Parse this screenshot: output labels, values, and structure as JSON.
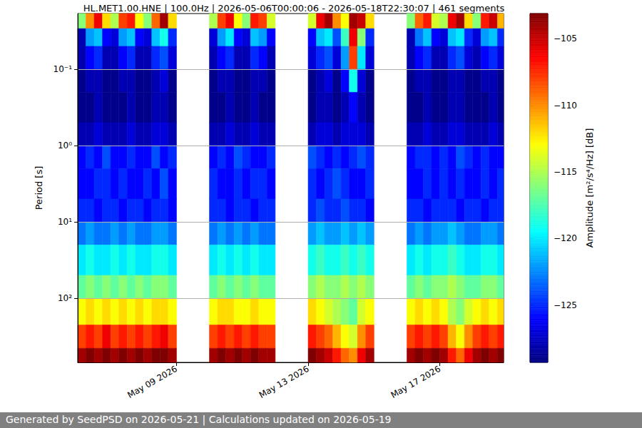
{
  "chart_data": {
    "type": "heatmap",
    "title": "HL.MET1.00.HNE | 100.0Hz | 2026-05-06T00:00:06 - 2026-05-18T22:30:07 | 461 segments",
    "footer": "Generated by SeedPSD on 2026-05-21 | Calculations updated on 2026-05-19",
    "ylabel": "Period [s]",
    "log": "y",
    "grid": true,
    "xlim": [
      "2026-05-06T00:00:06",
      "2026-05-18T22:30:07"
    ],
    "xticks": [
      {
        "value": "2026-05-09T00:00:00",
        "label": "May 09 2026"
      },
      {
        "value": "2026-05-13T00:00:00",
        "label": "May 13 2026"
      },
      {
        "value": "2026-05-17T00:00:00",
        "label": "May 17 2026"
      }
    ],
    "ylim": [
      0.0186,
      690
    ],
    "yticks": [
      {
        "value": 0.1,
        "label": "10⁻¹"
      },
      {
        "value": 1,
        "label": "10⁰"
      },
      {
        "value": 10,
        "label": "10¹"
      },
      {
        "value": 100,
        "label": "10²"
      }
    ],
    "x": [
      "2026-05-06T00:00:00",
      "2026-05-06T06:00:00",
      "2026-05-06T12:00:00",
      "2026-05-06T18:00:00",
      "2026-05-07T00:00:00",
      "2026-05-07T06:00:00",
      "2026-05-07T12:00:00",
      "2026-05-07T18:00:00",
      "2026-05-08T00:00:00",
      "2026-05-08T06:00:00",
      "2026-05-08T12:00:00",
      "2026-05-08T18:00:00",
      "2026-05-10T00:00:00",
      "2026-05-10T06:00:00",
      "2026-05-10T12:00:00",
      "2026-05-10T18:00:00",
      "2026-05-11T00:00:00",
      "2026-05-11T06:00:00",
      "2026-05-11T12:00:00",
      "2026-05-11T18:00:00",
      "2026-05-13T00:00:00",
      "2026-05-13T06:00:00",
      "2026-05-13T12:00:00",
      "2026-05-13T18:00:00",
      "2026-05-14T00:00:00",
      "2026-05-14T06:00:00",
      "2026-05-14T12:00:00",
      "2026-05-14T18:00:00",
      "2026-05-16T00:00:00",
      "2026-05-16T06:00:00",
      "2026-05-16T12:00:00",
      "2026-05-16T18:00:00",
      "2026-05-17T00:00:00",
      "2026-05-17T06:00:00",
      "2026-05-17T12:00:00",
      "2026-05-17T18:00:00",
      "2026-05-18T00:00:00",
      "2026-05-18T06:00:00",
      "2026-05-18T12:00:00",
      "2026-05-18T18:00:00"
    ],
    "period_bins": [
      0.0186,
      0.0293,
      0.05,
      0.1,
      0.2,
      0.5,
      1,
      2,
      5,
      10,
      20,
      50,
      100,
      223,
      451,
      690
    ],
    "amplitude": [
      [
        -116,
        -110,
        -106,
        -112,
        -115,
        -108,
        -107,
        -113,
        -116,
        -109,
        -104,
        -112,
        -115,
        -108,
        -106,
        -113,
        -116,
        -107,
        -108,
        -114,
        -114,
        -106,
        -104,
        -110,
        -113,
        -104,
        -105,
        -112,
        -116,
        -109,
        -107,
        -114,
        -115,
        -106,
        -104,
        -112,
        -116,
        -107,
        -105,
        -111
      ],
      [
        -128,
        -122,
        -121,
        -126,
        -127,
        -122,
        -121,
        -126,
        -127,
        -121,
        -119,
        -125,
        -127,
        -122,
        -120,
        -126,
        -127,
        -121,
        -122,
        -126,
        -126,
        -121,
        -120,
        -124,
        -118,
        -106,
        -116,
        -125,
        -128,
        -123,
        -121,
        -126,
        -127,
        -121,
        -120,
        -125,
        -127,
        -122,
        -121,
        -125
      ],
      [
        -128,
        -126,
        -125,
        -128,
        -128,
        -126,
        -125,
        -128,
        -128,
        -125,
        -124,
        -127,
        -128,
        -126,
        -125,
        -128,
        -128,
        -125,
        -126,
        -128,
        -127,
        -125,
        -124,
        -127,
        -122,
        -108,
        -120,
        -127,
        -128,
        -126,
        -125,
        -128,
        -128,
        -125,
        -124,
        -127,
        -128,
        -126,
        -125,
        -127
      ],
      [
        -129,
        -128,
        -128,
        -129,
        -129,
        -128,
        -128,
        -129,
        -129,
        -128,
        -127,
        -129,
        -129,
        -128,
        -128,
        -129,
        -129,
        -128,
        -128,
        -129,
        -129,
        -128,
        -127,
        -129,
        -126,
        -119,
        -127,
        -129,
        -129,
        -128,
        -128,
        -129,
        -129,
        -128,
        -128,
        -129,
        -129,
        -128,
        -128,
        -129
      ],
      [
        -129,
        -129,
        -128,
        -129,
        -129,
        -129,
        -128,
        -129,
        -129,
        -128,
        -128,
        -129,
        -129,
        -129,
        -128,
        -129,
        -129,
        -128,
        -129,
        -129,
        -129,
        -128,
        -128,
        -129,
        -128,
        -126,
        -128,
        -129,
        -129,
        -129,
        -128,
        -129,
        -129,
        -128,
        -128,
        -129,
        -129,
        -129,
        -128,
        -129
      ],
      [
        -128,
        -128,
        -127,
        -128,
        -128,
        -128,
        -127,
        -128,
        -128,
        -127,
        -127,
        -128,
        -128,
        -128,
        -127,
        -128,
        -128,
        -127,
        -128,
        -128,
        -128,
        -127,
        -127,
        -128,
        -127,
        -127,
        -127,
        -128,
        -128,
        -128,
        -127,
        -128,
        -128,
        -127,
        -127,
        -128,
        -128,
        -128,
        -127,
        -128
      ],
      [
        -126,
        -125,
        -126,
        -124,
        -126,
        -126,
        -125,
        -126,
        -126,
        -124,
        -126,
        -125,
        -126,
        -125,
        -126,
        -124,
        -125,
        -126,
        -126,
        -125,
        -124,
        -125,
        -126,
        -125,
        -126,
        -125,
        -124,
        -125,
        -126,
        -125,
        -125,
        -126,
        -125,
        -126,
        -124,
        -125,
        -126,
        -125,
        -126,
        -126
      ],
      [
        -126,
        -126,
        -125,
        -125,
        -126,
        -125,
        -126,
        -126,
        -125,
        -126,
        -124,
        -126,
        -125,
        -126,
        -126,
        -125,
        -126,
        -125,
        -125,
        -126,
        -125,
        -126,
        -125,
        -124,
        -125,
        -126,
        -126,
        -125,
        -126,
        -126,
        -125,
        -126,
        -125,
        -126,
        -125,
        -126,
        -126,
        -125,
        -126,
        -125
      ],
      [
        -125,
        -125,
        -126,
        -125,
        -125,
        -126,
        -125,
        -125,
        -126,
        -125,
        -125,
        -126,
        -125,
        -125,
        -126,
        -125,
        -125,
        -126,
        -125,
        -125,
        -125,
        -124,
        -125,
        -125,
        -124,
        -125,
        -125,
        -126,
        -125,
        -125,
        -126,
        -125,
        -125,
        -125,
        -126,
        -125,
        -125,
        -126,
        -125,
        -125
      ],
      [
        -123,
        -122,
        -123,
        -123,
        -122,
        -123,
        -122,
        -123,
        -123,
        -122,
        -122,
        -123,
        -123,
        -122,
        -123,
        -122,
        -123,
        -122,
        -123,
        -123,
        -122,
        -121,
        -122,
        -122,
        -121,
        -122,
        -121,
        -122,
        -123,
        -122,
        -123,
        -122,
        -122,
        -121,
        -122,
        -123,
        -123,
        -122,
        -122,
        -123
      ],
      [
        -120,
        -119,
        -120,
        -120,
        -119,
        -120,
        -119,
        -120,
        -120,
        -119,
        -119,
        -120,
        -120,
        -119,
        -120,
        -119,
        -120,
        -119,
        -120,
        -120,
        -119,
        -118,
        -119,
        -119,
        -118,
        -119,
        -118,
        -119,
        -120,
        -119,
        -120,
        -119,
        -119,
        -118,
        -119,
        -120,
        -120,
        -119,
        -119,
        -120
      ],
      [
        -117,
        -116,
        -117,
        -116,
        -117,
        -116,
        -117,
        -116,
        -117,
        -116,
        -116,
        -117,
        -117,
        -116,
        -117,
        -116,
        -117,
        -116,
        -117,
        -117,
        -116,
        -115,
        -116,
        -116,
        -115,
        -116,
        -115,
        -116,
        -117,
        -116,
        -117,
        -116,
        -116,
        -115,
        -116,
        -117,
        -117,
        -116,
        -116,
        -117
      ],
      [
        -113,
        -112,
        -113,
        -112,
        -113,
        -112,
        -113,
        -112,
        -113,
        -112,
        -112,
        -113,
        -113,
        -112,
        -112,
        -113,
        -113,
        -112,
        -113,
        -113,
        -112,
        -113,
        -114,
        -115,
        -116,
        -117,
        -114,
        -113,
        -113,
        -112,
        -113,
        -112,
        -113,
        -115,
        -116,
        -114,
        -113,
        -112,
        -113,
        -112
      ],
      [
        -108,
        -107,
        -108,
        -106,
        -108,
        -107,
        -108,
        -107,
        -108,
        -107,
        -106,
        -108,
        -108,
        -107,
        -108,
        -107,
        -108,
        -107,
        -108,
        -108,
        -107,
        -108,
        -109,
        -111,
        -113,
        -114,
        -110,
        -108,
        -108,
        -107,
        -108,
        -107,
        -108,
        -111,
        -113,
        -110,
        -108,
        -107,
        -108,
        -107
      ],
      [
        -104,
        -103,
        -104,
        -103,
        -104,
        -103,
        -104,
        -103,
        -104,
        -103,
        -103,
        -104,
        -104,
        -103,
        -104,
        -103,
        -104,
        -103,
        -104,
        -104,
        -103,
        -104,
        -105,
        -107,
        -109,
        -110,
        -106,
        -104,
        -104,
        -103,
        -104,
        -103,
        -104,
        -107,
        -109,
        -106,
        -104,
        -103,
        -104,
        -103
      ]
    ],
    "colorbar": {
      "label": "Amplitude [m²/s⁴/Hz] [dB]",
      "range": [
        -129.3,
        -103.1
      ],
      "ticks": [
        {
          "value": -125,
          "label": "−125"
        },
        {
          "value": -120,
          "label": "−120"
        },
        {
          "value": -115,
          "label": "−115"
        },
        {
          "value": -110,
          "label": "−110"
        },
        {
          "value": -105,
          "label": "−105"
        }
      ],
      "colors": [
        "#00007f",
        "#0000ff",
        "#007fff",
        "#00ffff",
        "#7fff7f",
        "#ffff00",
        "#ff7f00",
        "#ff0000",
        "#7f0000"
      ]
    }
  }
}
